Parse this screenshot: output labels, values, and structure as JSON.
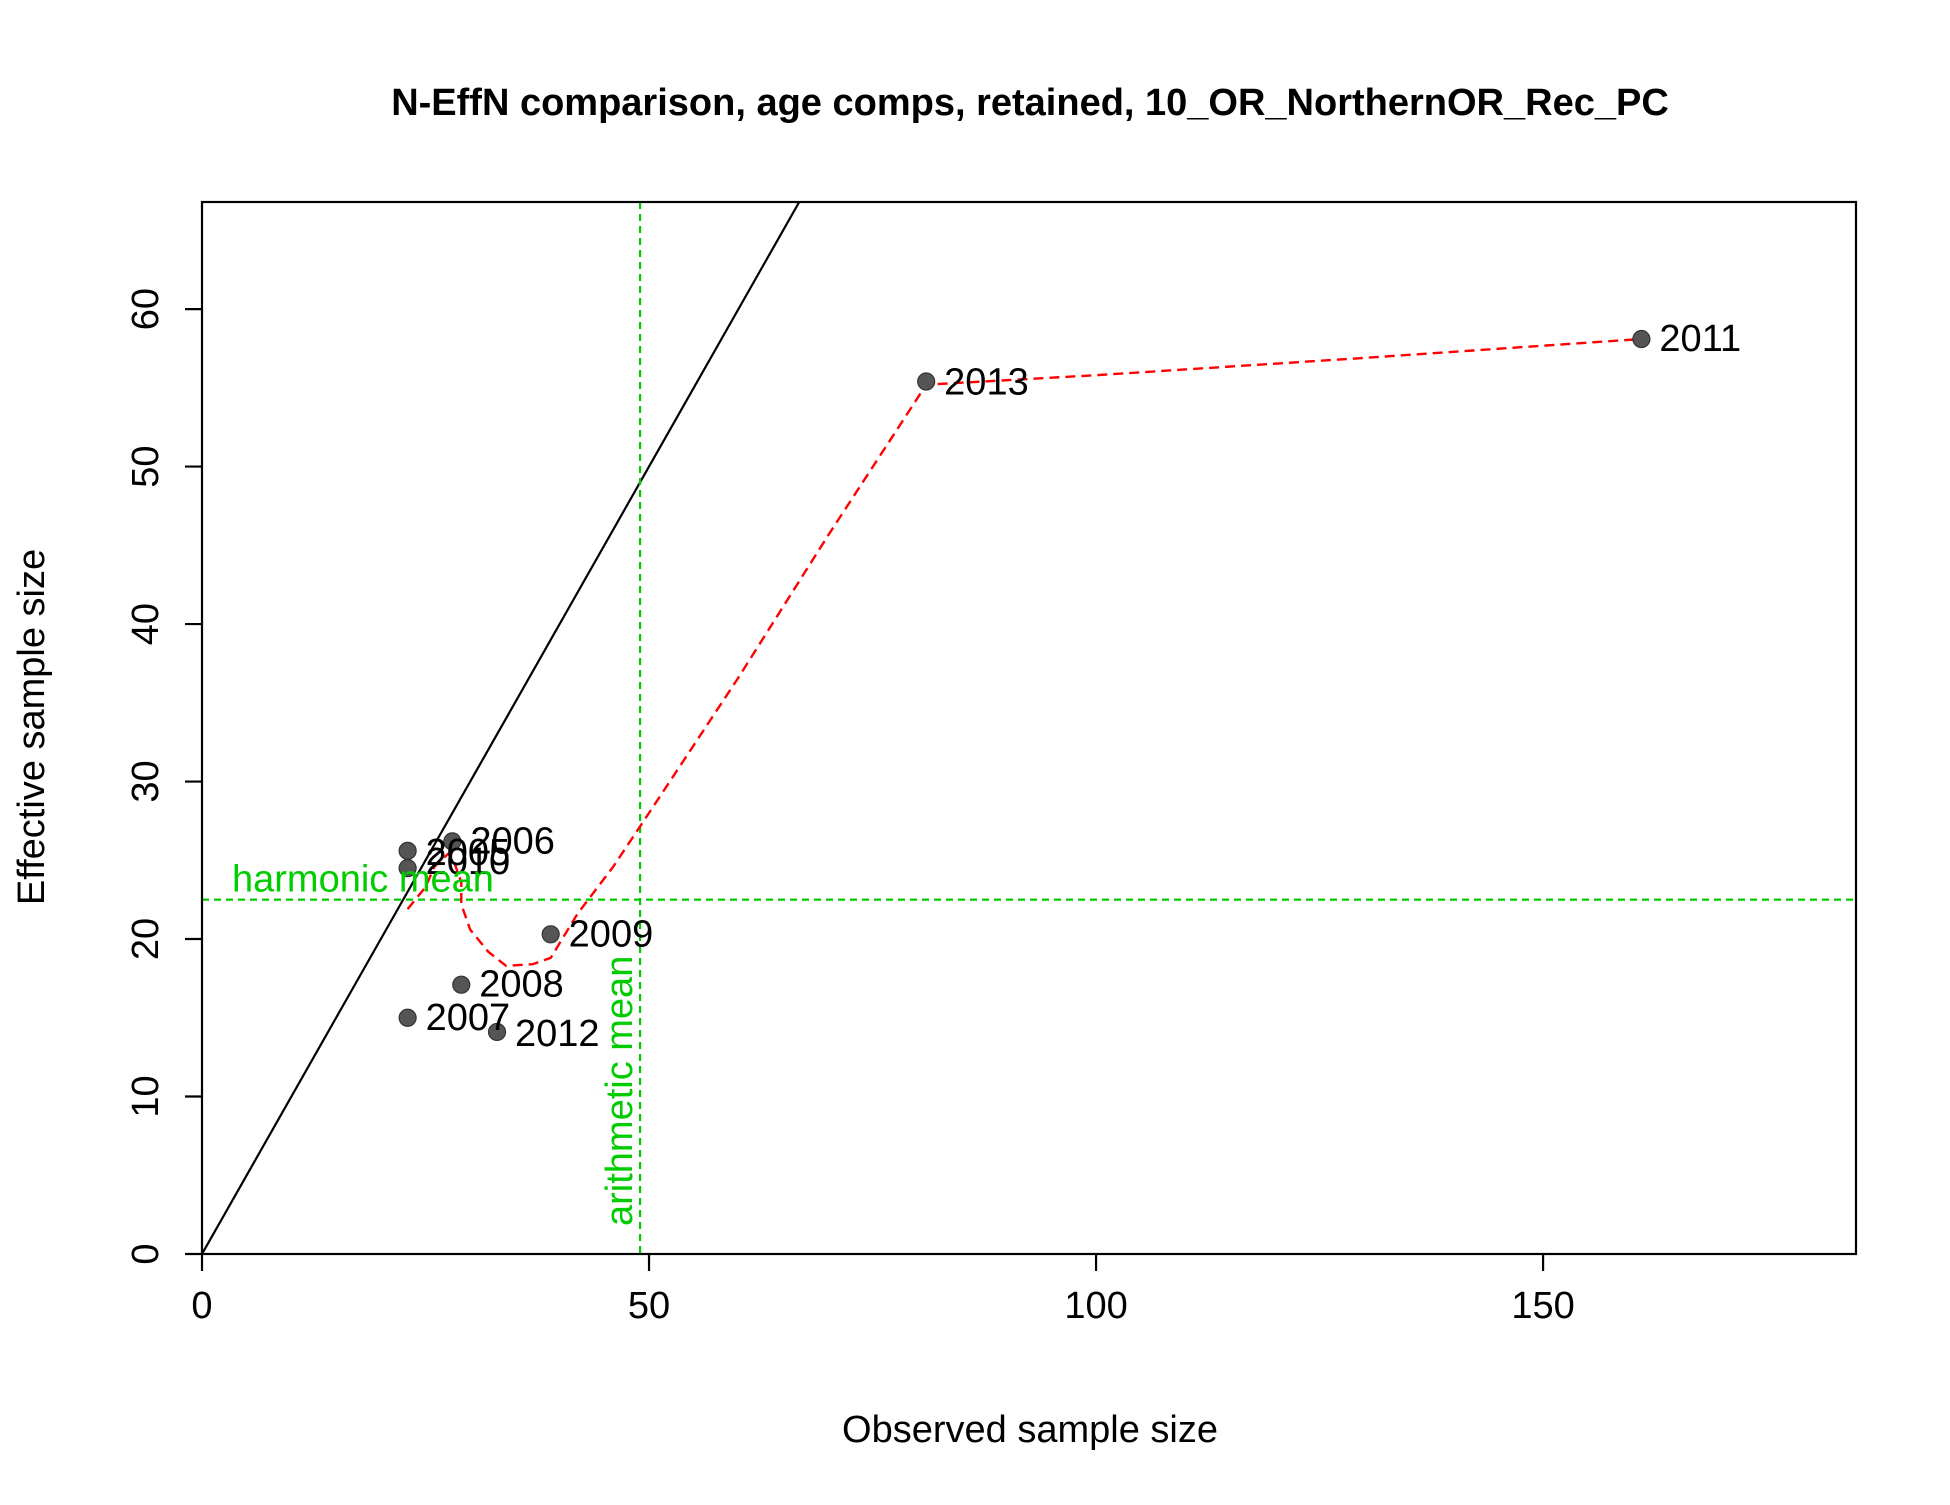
{
  "chart_data": {
    "type": "scatter",
    "title": "N-EffN comparison, age comps, retained, 10_OR_NorthernOR_Rec_PC",
    "xlabel": "Observed sample size",
    "ylabel": "Effective sample size",
    "xlim": [
      0,
      185
    ],
    "ylim": [
      0,
      66.8
    ],
    "x_ticks": [
      0,
      50,
      100,
      150
    ],
    "y_ticks": [
      0,
      10,
      20,
      30,
      40,
      50,
      60
    ],
    "x_tick_labels": [
      "0",
      "50",
      "100",
      "150"
    ],
    "y_tick_labels": [
      "0",
      "10",
      "20",
      "30",
      "40",
      "50",
      "60"
    ],
    "grid": false,
    "points": [
      {
        "label": "2006",
        "x": 28,
        "y": 26.2
      },
      {
        "label": "2005",
        "x": 23,
        "y": 25.6
      },
      {
        "label": "2010",
        "x": 23,
        "y": 24.5
      },
      {
        "label": "2009",
        "x": 39,
        "y": 20.3
      },
      {
        "label": "2008",
        "x": 29,
        "y": 17.1
      },
      {
        "label": "2007",
        "x": 23,
        "y": 15.0
      },
      {
        "label": "2012",
        "x": 33,
        "y": 14.1
      },
      {
        "label": "2013",
        "x": 81,
        "y": 55.4
      },
      {
        "label": "2011",
        "x": 161,
        "y": 58.1
      }
    ],
    "visible_point_labels": [
      "2006",
      "2009",
      "2008",
      "2007",
      "2012",
      "2013",
      "2011"
    ],
    "overlapping_label_text": "2006",
    "overlapping_label_text_2": "2005",
    "smoother": [
      [
        23,
        21.9
      ],
      [
        25,
        23.3
      ],
      [
        26,
        24.6
      ],
      [
        27.5,
        25.4
      ],
      [
        28,
        25.2
      ],
      [
        29,
        23.6
      ],
      [
        29,
        22.2
      ],
      [
        30,
        20.6
      ],
      [
        32,
        19.2
      ],
      [
        34,
        18.3
      ],
      [
        37,
        18.4
      ],
      [
        39,
        18.8
      ],
      [
        42,
        21.6
      ],
      [
        46,
        24.6
      ],
      [
        50,
        28.0
      ],
      [
        60,
        36.6
      ],
      [
        70,
        45.6
      ],
      [
        81,
        55.2
      ],
      [
        100,
        55.8
      ],
      [
        130,
        56.9
      ],
      [
        161,
        58.1
      ]
    ],
    "one_to_one_line": true,
    "arithmetic_mean": {
      "label": "arithmetic mean",
      "x": 49
    },
    "harmonic_mean": {
      "label": "harmonic mean",
      "y": 22.5
    },
    "colors": {
      "points": "#555555",
      "smoother": "#ff0000",
      "means": "#00cc00",
      "one_to_one": "#000000"
    }
  }
}
